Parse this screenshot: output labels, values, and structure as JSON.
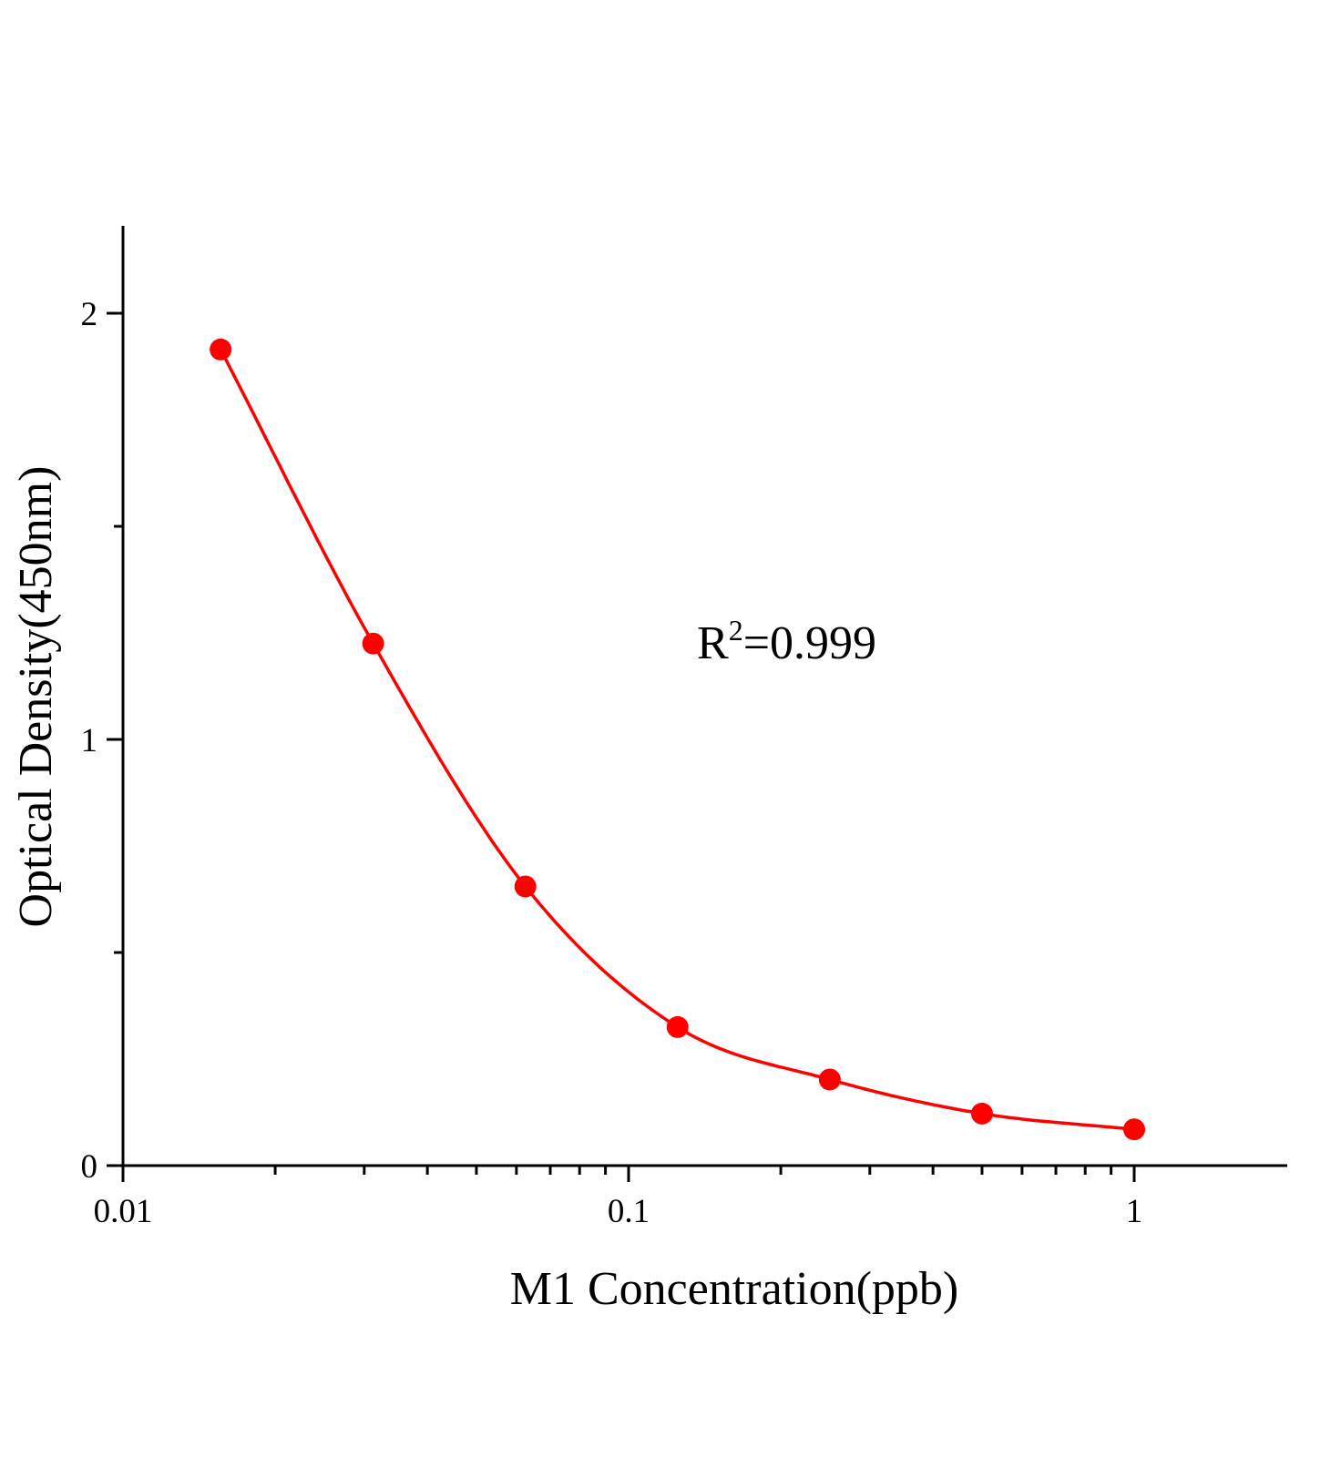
{
  "chart_data": {
    "type": "scatter",
    "xscale": "log",
    "xlabel": "M1  Concentration(ppb)",
    "ylabel": "Optical Density(450nm)",
    "xlim": [
      0.01,
      1.5
    ],
    "ylim": [
      0,
      2.2
    ],
    "x_ticks": [
      0.01,
      0.1,
      1
    ],
    "x_tick_labels": [
      "0.01",
      "0.1",
      "1"
    ],
    "y_ticks": [
      0,
      1,
      2
    ],
    "y_tick_labels": [
      "0",
      "1",
      "2"
    ],
    "y_minor_ticks": [
      0.5,
      1.5
    ],
    "grid": false,
    "legend": "none",
    "annotation": {
      "prefix": "R",
      "sup": "2",
      "suffix": "=0.999"
    },
    "series": [
      {
        "color": "#ff0000",
        "points": [
          {
            "x": 0.0156,
            "y": 1.915
          },
          {
            "x": 0.03125,
            "y": 1.225
          },
          {
            "x": 0.0625,
            "y": 0.655
          },
          {
            "x": 0.125,
            "y": 0.325
          },
          {
            "x": 0.25,
            "y": 0.202
          },
          {
            "x": 0.5,
            "y": 0.122
          },
          {
            "x": 1.0,
            "y": 0.085
          }
        ]
      }
    ]
  }
}
